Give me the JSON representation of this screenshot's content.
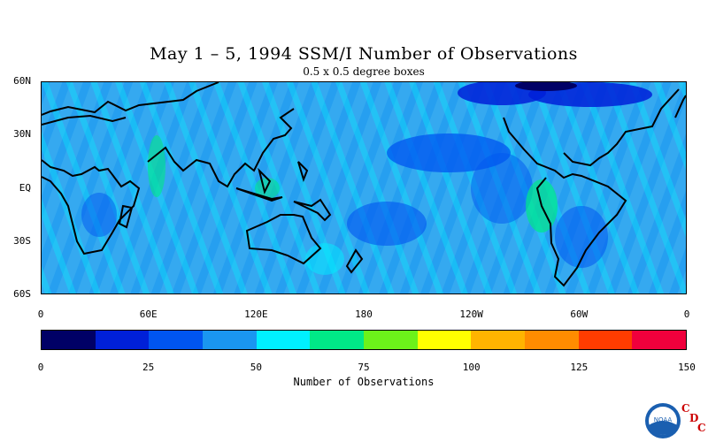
{
  "title": "May 1 – 5, 1994 SSM/I Number of Observations",
  "subtitle": "0.5 x 0.5 degree boxes",
  "map": {
    "lat_labels": [
      "60N",
      "30N",
      "EQ",
      "30S",
      "60S"
    ],
    "lon_labels": [
      "0",
      "60E",
      "120E",
      "180",
      "120W",
      "60W",
      "0"
    ],
    "lat_range": [
      -60,
      60
    ],
    "lon_range": [
      0,
      360
    ],
    "ocean_base_color": "#35a9f0",
    "coastline_color": "#000000"
  },
  "colorbar": {
    "title": "Number of Observations",
    "tick_labels": [
      "0",
      "25",
      "50",
      "75",
      "100",
      "125",
      "150"
    ],
    "range": [
      0,
      150
    ],
    "interval": 12.5,
    "colors": [
      "#000066",
      "#0020d8",
      "#0055f0",
      "#1a96f0",
      "#00f0ff",
      "#00e887",
      "#6cf21a",
      "#ffff00",
      "#ffb400",
      "#ff8c00",
      "#ff3c00",
      "#f0003c"
    ]
  },
  "logo": {
    "text": "NOAA",
    "agency_letters": [
      "C",
      "D",
      "C"
    ]
  }
}
